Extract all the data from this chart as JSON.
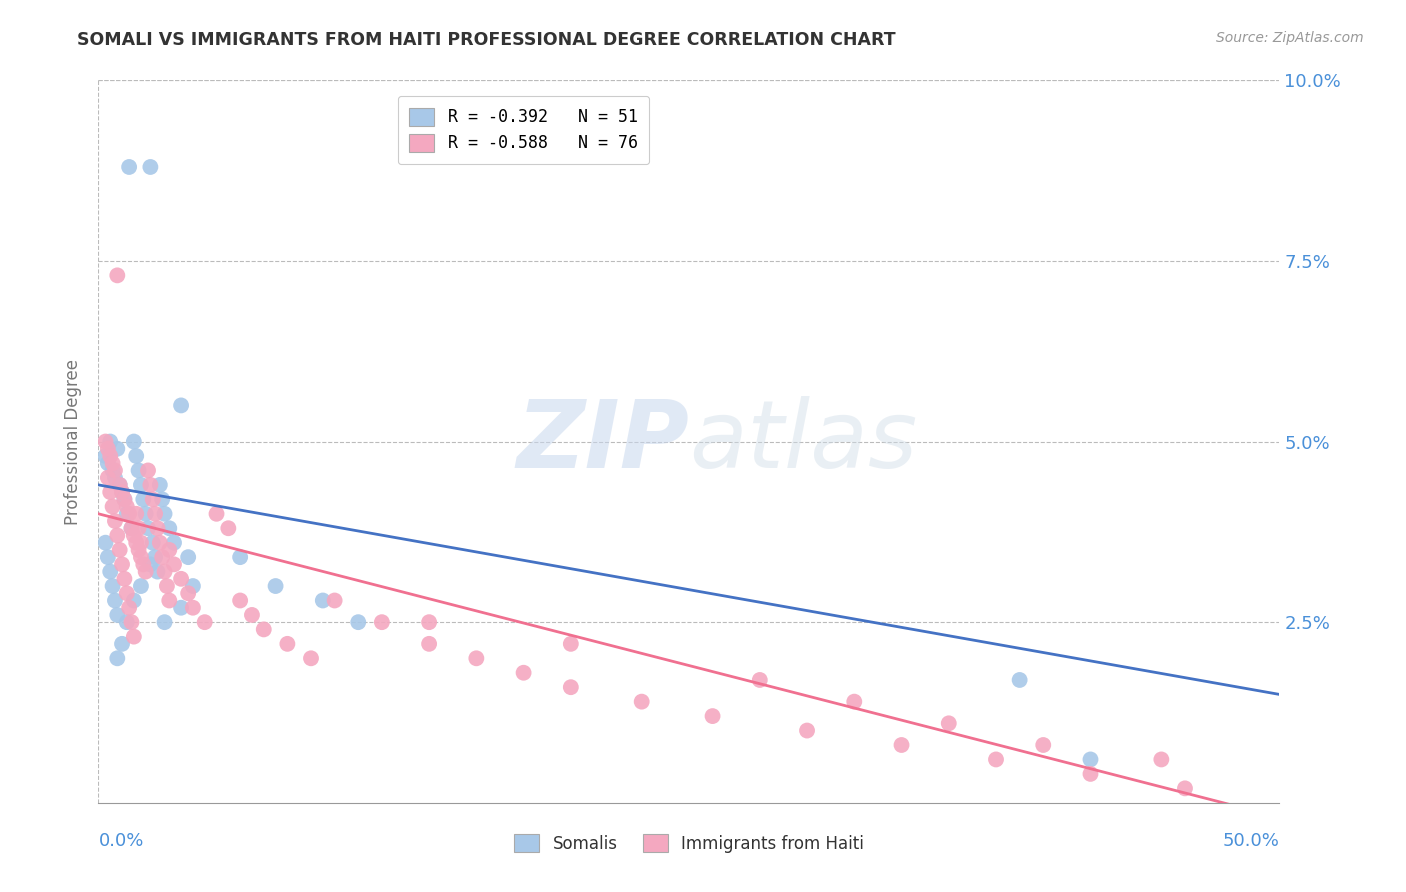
{
  "title": "SOMALI VS IMMIGRANTS FROM HAITI PROFESSIONAL DEGREE CORRELATION CHART",
  "source": "Source: ZipAtlas.com",
  "ylabel": "Professional Degree",
  "ytick_values": [
    0.0,
    0.025,
    0.05,
    0.075,
    0.1
  ],
  "ytick_labels": [
    "",
    "2.5%",
    "5.0%",
    "7.5%",
    "10.0%"
  ],
  "xlim": [
    0.0,
    0.5
  ],
  "ylim": [
    0.0,
    0.1
  ],
  "watermark_zip": "ZIP",
  "watermark_atlas": "atlas",
  "legend_entries": [
    {
      "label": "R = -0.392   N = 51",
      "color": "#a8c8e8"
    },
    {
      "label": "R = -0.588   N = 76",
      "color": "#f4a8c0"
    }
  ],
  "legend_bottom": [
    "Somalis",
    "Immigrants from Haiti"
  ],
  "somalis_color": "#a8c8e8",
  "haiti_color": "#f4a8c0",
  "somalis_line_color": "#4472c4",
  "haiti_line_color": "#f07090",
  "background_color": "#ffffff",
  "grid_color": "#bbbbbb",
  "axis_label_color": "#4a90d9",
  "title_color": "#333333",
  "somalis_x": [
    0.003,
    0.013,
    0.022,
    0.005,
    0.008,
    0.004,
    0.006,
    0.007,
    0.009,
    0.01,
    0.011,
    0.012,
    0.014,
    0.015,
    0.016,
    0.017,
    0.018,
    0.019,
    0.02,
    0.021,
    0.023,
    0.024,
    0.025,
    0.026,
    0.027,
    0.028,
    0.003,
    0.004,
    0.005,
    0.006,
    0.007,
    0.008,
    0.03,
    0.032,
    0.035,
    0.038,
    0.04,
    0.035,
    0.028,
    0.022,
    0.018,
    0.015,
    0.012,
    0.01,
    0.008,
    0.06,
    0.075,
    0.095,
    0.11,
    0.39,
    0.42
  ],
  "somalis_y": [
    0.048,
    0.088,
    0.088,
    0.05,
    0.049,
    0.047,
    0.046,
    0.045,
    0.044,
    0.043,
    0.042,
    0.04,
    0.038,
    0.05,
    0.048,
    0.046,
    0.044,
    0.042,
    0.04,
    0.038,
    0.036,
    0.034,
    0.032,
    0.044,
    0.042,
    0.04,
    0.036,
    0.034,
    0.032,
    0.03,
    0.028,
    0.026,
    0.038,
    0.036,
    0.055,
    0.034,
    0.03,
    0.027,
    0.025,
    0.033,
    0.03,
    0.028,
    0.025,
    0.022,
    0.02,
    0.034,
    0.03,
    0.028,
    0.025,
    0.017,
    0.006
  ],
  "haiti_x": [
    0.003,
    0.004,
    0.005,
    0.006,
    0.007,
    0.008,
    0.009,
    0.01,
    0.011,
    0.012,
    0.013,
    0.014,
    0.015,
    0.016,
    0.017,
    0.018,
    0.019,
    0.02,
    0.021,
    0.022,
    0.023,
    0.024,
    0.025,
    0.026,
    0.027,
    0.028,
    0.029,
    0.03,
    0.004,
    0.005,
    0.006,
    0.007,
    0.008,
    0.009,
    0.01,
    0.011,
    0.012,
    0.013,
    0.014,
    0.015,
    0.016,
    0.017,
    0.018,
    0.03,
    0.032,
    0.035,
    0.038,
    0.04,
    0.045,
    0.05,
    0.055,
    0.06,
    0.065,
    0.07,
    0.08,
    0.09,
    0.1,
    0.12,
    0.14,
    0.16,
    0.18,
    0.2,
    0.23,
    0.26,
    0.3,
    0.34,
    0.38,
    0.42,
    0.46,
    0.14,
    0.2,
    0.28,
    0.32,
    0.36,
    0.4,
    0.45
  ],
  "haiti_y": [
    0.05,
    0.049,
    0.048,
    0.047,
    0.046,
    0.073,
    0.044,
    0.043,
    0.042,
    0.041,
    0.04,
    0.038,
    0.037,
    0.036,
    0.035,
    0.034,
    0.033,
    0.032,
    0.046,
    0.044,
    0.042,
    0.04,
    0.038,
    0.036,
    0.034,
    0.032,
    0.03,
    0.028,
    0.045,
    0.043,
    0.041,
    0.039,
    0.037,
    0.035,
    0.033,
    0.031,
    0.029,
    0.027,
    0.025,
    0.023,
    0.04,
    0.038,
    0.036,
    0.035,
    0.033,
    0.031,
    0.029,
    0.027,
    0.025,
    0.04,
    0.038,
    0.028,
    0.026,
    0.024,
    0.022,
    0.02,
    0.028,
    0.025,
    0.022,
    0.02,
    0.018,
    0.016,
    0.014,
    0.012,
    0.01,
    0.008,
    0.006,
    0.004,
    0.002,
    0.025,
    0.022,
    0.017,
    0.014,
    0.011,
    0.008,
    0.006
  ],
  "somali_line_x0": 0.0,
  "somali_line_y0": 0.044,
  "somali_line_x1": 0.5,
  "somali_line_y1": 0.015,
  "haiti_line_x0": 0.0,
  "haiti_line_y0": 0.04,
  "haiti_line_x1": 0.5,
  "haiti_line_y1": -0.002
}
